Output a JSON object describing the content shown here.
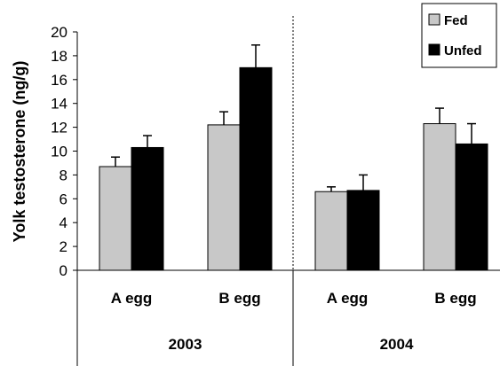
{
  "chart_data": {
    "type": "bar",
    "title": "",
    "xlabel": "",
    "ylabel": "Yolk testosterone (ng/g)",
    "ylim": [
      0,
      20
    ],
    "yticks": [
      0,
      2,
      4,
      6,
      8,
      10,
      12,
      14,
      16,
      18,
      20
    ],
    "groups": [
      {
        "label": "2003",
        "categories": [
          "A egg",
          "B egg"
        ]
      },
      {
        "label": "2004",
        "categories": [
          "A egg",
          "B egg"
        ]
      }
    ],
    "series": [
      {
        "name": "Fed",
        "color": "#c8c8c8",
        "values": [
          8.7,
          12.2,
          6.6,
          12.3
        ],
        "errors": [
          0.8,
          1.1,
          0.4,
          1.3
        ]
      },
      {
        "name": "Unfed",
        "color": "#000000",
        "values": [
          10.3,
          17.0,
          6.7,
          10.6
        ],
        "errors": [
          1.0,
          1.9,
          1.3,
          1.7
        ]
      }
    ],
    "legend_position": "top-right",
    "grid": false,
    "group_separator": "dotted vertical line between 2003 and 2004"
  }
}
